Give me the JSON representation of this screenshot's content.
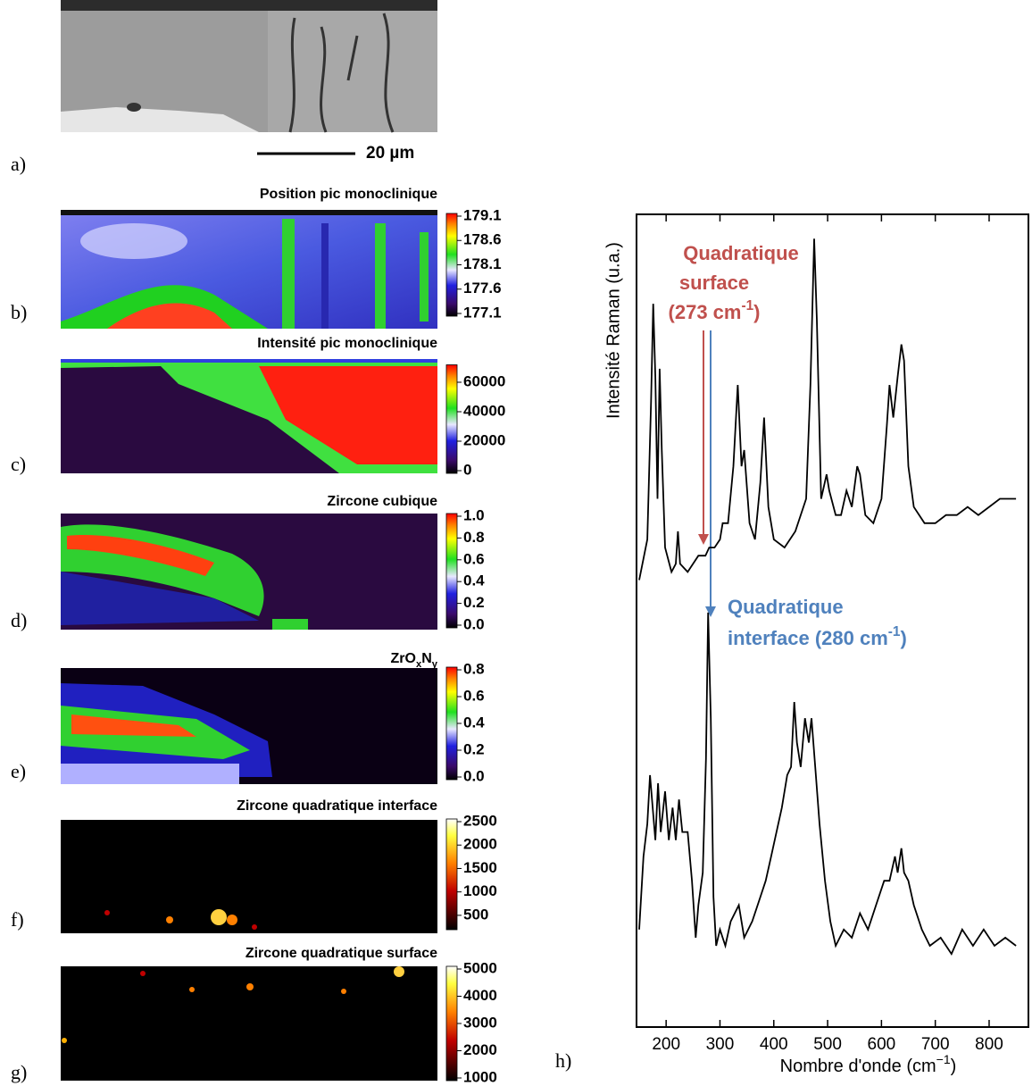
{
  "panel_a": {
    "label": "a)",
    "scale_bar": "20 µm"
  },
  "chart_data": [
    {
      "type": "heatmap",
      "label": "b)",
      "title": "Position pic monoclinique",
      "colormap": "rainbow",
      "clim": [
        177.1,
        179.1
      ],
      "cticks": [
        179.1,
        178.6,
        178.1,
        177.6,
        177.1
      ]
    },
    {
      "type": "heatmap",
      "label": "c)",
      "title": "Intensité pic monoclinique",
      "colormap": "rainbow",
      "clim": [
        0,
        70000
      ],
      "cticks": [
        60000,
        40000,
        20000,
        0
      ]
    },
    {
      "type": "heatmap",
      "label": "d)",
      "title": "Zircone cubique",
      "colormap": "rainbow",
      "clim": [
        0,
        1
      ],
      "cticks": [
        {
          "value": 1,
          "label": "1.0"
        },
        0.8,
        0.6,
        0.4,
        0.2,
        {
          "value": 0,
          "label": "0.0"
        }
      ]
    },
    {
      "type": "heatmap",
      "label": "e)",
      "title": [
        "ZrO",
        "x",
        "N",
        "y"
      ],
      "colormap": "rainbow",
      "clim": [
        0,
        0.8
      ],
      "cticks": [
        0.8,
        0.6,
        0.4,
        0.2,
        {
          "value": 0,
          "label": "0.0"
        }
      ]
    },
    {
      "type": "heatmap",
      "label": "f)",
      "title": "Zircone quadratique interface",
      "colormap": "hot",
      "clim": [
        250,
        2500
      ],
      "cticks": [
        2500,
        2000,
        1500,
        1000,
        500
      ]
    },
    {
      "type": "heatmap",
      "label": "g)",
      "title": "Zircone quadratique surface",
      "colormap": "hot",
      "clim": [
        1000,
        5000
      ],
      "cticks": [
        5000,
        4000,
        3000,
        2000,
        1000
      ]
    },
    {
      "type": "line",
      "label": "h)",
      "xlabel": [
        "Nombre d'onde (cm",
        "−1",
        ")"
      ],
      "ylabel": "Intensité Raman (u.a.)",
      "xlim": [
        145,
        873
      ],
      "xticks": [
        200,
        300,
        400,
        500,
        600,
        700,
        800
      ],
      "ylim": [
        0,
        100
      ],
      "series": [
        {
          "color": "#000000",
          "x": [
            150,
            165,
            172,
            176,
            180,
            184,
            188,
            192,
            198,
            210,
            218,
            222,
            226,
            240,
            260,
            273,
            280,
            290,
            300,
            305,
            315,
            325,
            333,
            340,
            345,
            355,
            365,
            375,
            382,
            390,
            400,
            420,
            440,
            460,
            468,
            475,
            480,
            488,
            498,
            503,
            515,
            525,
            535,
            545,
            555,
            560,
            570,
            585,
            600,
            610,
            615,
            622,
            630,
            637,
            642,
            650,
            660,
            680,
            700,
            720,
            740,
            760,
            780,
            800,
            820,
            840,
            850
          ],
          "values": [
            55,
            60,
            77,
            89,
            80,
            65,
            81,
            71,
            59,
            56,
            57,
            61,
            57,
            56,
            58,
            58,
            59,
            59,
            60,
            62,
            62,
            69,
            79,
            69,
            71,
            62,
            60,
            67,
            75,
            64,
            60,
            59,
            61,
            65,
            79,
            97,
            87,
            65,
            68,
            66,
            63,
            63,
            66,
            64,
            69,
            68,
            63,
            62,
            65,
            74,
            79,
            75,
            80,
            84,
            82,
            69,
            64,
            62,
            62,
            63,
            63,
            64,
            63,
            64,
            65,
            65,
            65
          ]
        },
        {
          "color": "#000000",
          "x": [
            150,
            158,
            165,
            170,
            175,
            180,
            185,
            190,
            198,
            205,
            212,
            218,
            224,
            230,
            240,
            248,
            255,
            260,
            268,
            274,
            278,
            283,
            288,
            293,
            300,
            310,
            320,
            335,
            345,
            360,
            375,
            385,
            395,
            405,
            415,
            425,
            432,
            438,
            443,
            450,
            458,
            465,
            470,
            477,
            485,
            495,
            505,
            515,
            530,
            545,
            560,
            575,
            590,
            605,
            615,
            625,
            630,
            637,
            642,
            650,
            660,
            675,
            690,
            710,
            730,
            750,
            770,
            790,
            810,
            830,
            850
          ],
          "values": [
            12,
            21,
            25,
            31,
            27,
            23,
            30,
            24,
            29,
            23,
            27,
            23,
            28,
            24,
            24,
            18,
            11,
            15,
            19,
            33,
            51,
            38,
            16,
            10,
            12,
            10,
            13,
            15,
            11,
            13,
            16,
            18,
            21,
            24,
            27,
            31,
            32,
            40,
            35,
            32,
            38,
            35,
            38,
            32,
            25,
            18,
            13,
            10,
            12,
            11,
            14,
            12,
            15,
            18,
            18,
            21,
            19,
            22,
            19,
            18,
            15,
            12,
            10,
            11,
            9,
            12,
            10,
            12,
            10,
            11,
            10
          ]
        }
      ],
      "annotations": [
        {
          "color": "#c0504d",
          "lines": [
            [
              "Quadratique"
            ],
            [
              "surface"
            ],
            [
              "(273 cm",
              "-1",
              ")"
            ]
          ]
        },
        {
          "color": "#4f81bd",
          "lines": [
            [
              "Quadratique"
            ],
            [
              "interface (280 cm",
              "-1",
              ")"
            ]
          ]
        }
      ]
    }
  ]
}
